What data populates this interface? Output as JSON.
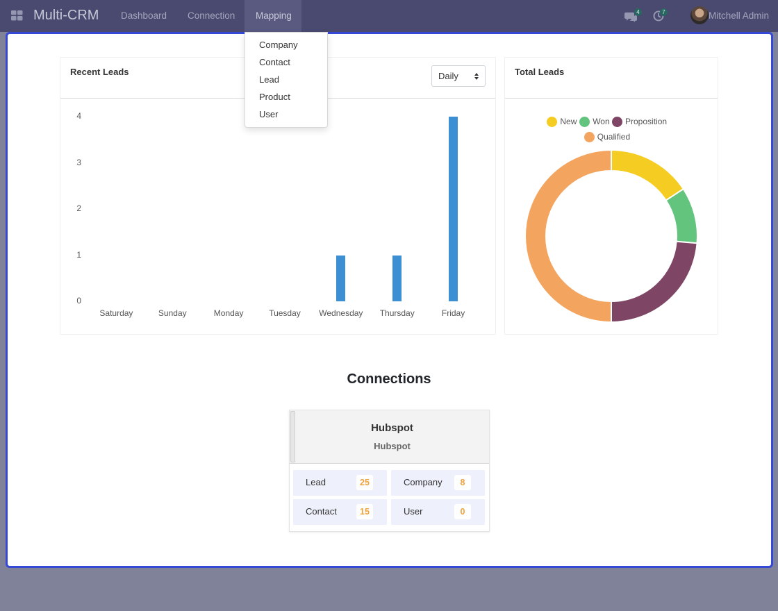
{
  "navbar": {
    "brand": "Multi-CRM",
    "menu": [
      "Dashboard",
      "Connection",
      "Mapping"
    ],
    "messages_count": "4",
    "activities_count": "7",
    "user_name": "Mitchell Admin"
  },
  "mapping_dropdown": {
    "items": [
      "Company",
      "Contact",
      "Lead",
      "Product",
      "User"
    ]
  },
  "recent_leads": {
    "title": "Recent Leads",
    "period_select": "Daily"
  },
  "total_leads": {
    "title": "Total Leads"
  },
  "chart_data": [
    {
      "type": "bar",
      "title": "Recent Leads",
      "categories": [
        "Saturday",
        "Sunday",
        "Monday",
        "Tuesday",
        "Wednesday",
        "Thursday",
        "Friday"
      ],
      "values": [
        0,
        0,
        0,
        0,
        1,
        1,
        4
      ],
      "ylim": [
        0,
        4
      ],
      "yticks": [
        "0",
        "1",
        "2",
        "3",
        "4"
      ],
      "color": "#3b8fd2",
      "grid": false,
      "legend": "none"
    },
    {
      "type": "pie",
      "title": "Total Leads",
      "donut": true,
      "labels": [
        "New",
        "Won",
        "Proposition",
        "Qualified"
      ],
      "values": [
        6,
        4,
        9,
        19
      ],
      "colors": [
        "#f5cd22",
        "#63c47e",
        "#7e4565",
        "#f3a45e"
      ],
      "legend": "top"
    }
  ],
  "connections": {
    "title": "Connections",
    "card": {
      "name": "Hubspot",
      "subtitle": "Hubspot",
      "stats": [
        {
          "label": "Lead",
          "count": "25"
        },
        {
          "label": "Company",
          "count": "8"
        },
        {
          "label": "Contact",
          "count": "15"
        },
        {
          "label": "User",
          "count": "0"
        }
      ]
    }
  },
  "colors": {
    "navbar": "#4a4a70",
    "accent_border": "#3548d6",
    "count": "#f0a23c"
  }
}
